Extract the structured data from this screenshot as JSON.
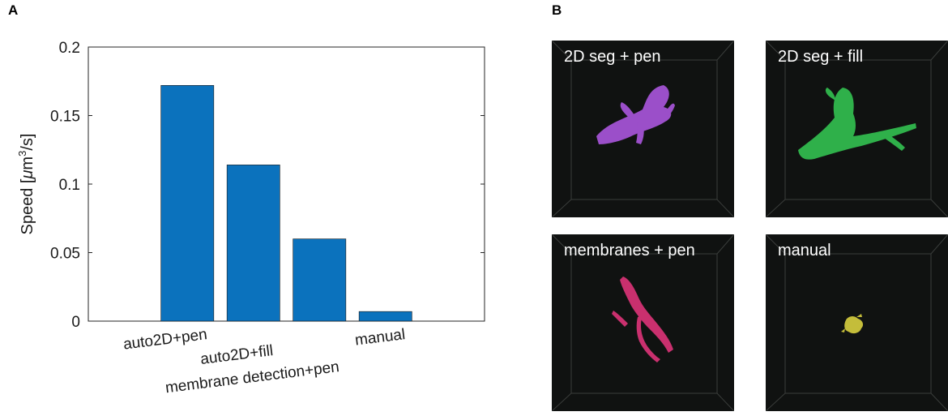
{
  "panel_a_letter": "A",
  "panel_b_letter": "B",
  "chart_data": {
    "type": "bar",
    "categories": [
      "auto2D+pen",
      "auto2D+fill",
      "membrane detection+pen",
      "manual"
    ],
    "values": [
      0.172,
      0.114,
      0.06,
      0.007
    ],
    "ylabel_prefix": "Speed [",
    "ylabel_mu": "μ",
    "ylabel_unit": "m",
    "ylabel_sup": "3",
    "ylabel_suffix": "/s]",
    "ylim": [
      0,
      0.2
    ],
    "yticks": [
      "0",
      "0.05",
      "0.1",
      "0.15",
      "0.2"
    ],
    "bar_color": "#0b72bd",
    "grid": false
  },
  "renders": [
    {
      "label": "2D seg + pen",
      "color": "#9b4fc9"
    },
    {
      "label": "2D seg + fill",
      "color": "#2fb04a"
    },
    {
      "label": "membranes + pen",
      "color": "#c9306e"
    },
    {
      "label": "manual",
      "color": "#c4bd3a"
    }
  ]
}
